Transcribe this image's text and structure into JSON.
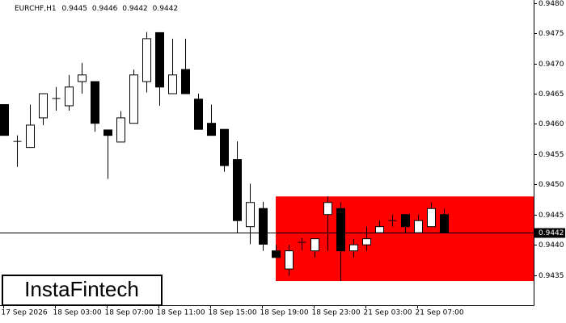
{
  "chart_data": {
    "type": "candlestick",
    "header": {
      "symbol": "EURCHF,H1",
      "open": 0.9445,
      "high": 0.9446,
      "low": 0.9442,
      "close": 0.9442
    },
    "logo": "InstaFintech",
    "categories": [
      "17 Sep 2026",
      null,
      null,
      null,
      "18 Sep 03:00",
      null,
      null,
      null,
      "18 Sep 07:00",
      null,
      null,
      null,
      "18 Sep 11:00",
      null,
      null,
      null,
      "18 Sep 15:00",
      null,
      null,
      null,
      "18 Sep 19:00",
      null,
      null,
      null,
      "18 Sep 23:00",
      null,
      null,
      null,
      "21 Sep 03:00",
      null,
      null,
      null,
      "21 Sep 07:00",
      null,
      null
    ],
    "open": [
      0.94632,
      0.94571,
      0.94561,
      0.9461,
      0.94642,
      0.9463,
      0.9467,
      0.9467,
      0.9459,
      0.9457,
      0.94601,
      0.9467,
      0.94751,
      0.9465,
      0.9469,
      0.94641,
      0.94601,
      0.94591,
      0.94541,
      0.9443,
      0.9446,
      0.9439,
      0.9436,
      0.94404,
      0.9439,
      0.9445,
      0.9446,
      0.9439,
      0.944,
      0.9442,
      0.9444,
      0.9445,
      0.9442,
      0.9443,
      0.9445
    ],
    "high": [
      0.94632,
      0.94581,
      0.94632,
      0.9465,
      0.94661,
      0.94681,
      0.94701,
      0.9467,
      0.9459,
      0.94621,
      0.9469,
      0.94752,
      0.94751,
      0.94741,
      0.94741,
      0.9465,
      0.94632,
      0.94591,
      0.94571,
      0.94501,
      0.94471,
      0.944,
      0.944,
      0.94411,
      0.9441,
      0.9448,
      0.9447,
      0.9441,
      0.9443,
      0.9444,
      0.9445,
      0.9445,
      0.9445,
      0.9447,
      0.9446
    ],
    "low": [
      0.94581,
      0.94529,
      0.94561,
      0.94598,
      0.94622,
      0.94622,
      0.9465,
      0.94587,
      0.94509,
      0.9457,
      0.94601,
      0.94652,
      0.9463,
      0.9465,
      0.9465,
      0.94591,
      0.94581,
      0.94521,
      0.9442,
      0.94401,
      0.9439,
      0.94379,
      0.94349,
      0.94391,
      0.94379,
      0.9439,
      0.9434,
      0.94379,
      0.9439,
      0.9442,
      0.9443,
      0.9442,
      0.9442,
      0.9443,
      0.9442
    ],
    "close": [
      0.94581,
      0.94571,
      0.94598,
      0.9465,
      0.94642,
      0.94661,
      0.94681,
      0.94601,
      0.94581,
      0.9461,
      0.94681,
      0.94741,
      0.94661,
      0.94681,
      0.9465,
      0.94591,
      0.94581,
      0.94531,
      0.9444,
      0.9447,
      0.94401,
      0.94379,
      0.9439,
      0.94404,
      0.9441,
      0.9447,
      0.9439,
      0.944,
      0.9441,
      0.9443,
      0.9444,
      0.9443,
      0.9444,
      0.9446,
      0.9442
    ],
    "zone": {
      "high": 0.9448,
      "low": 0.9434,
      "color": "#ff0000"
    },
    "last_price": {
      "value": 0.9442,
      "label": "0.9442"
    },
    "ylim": [
      0.943,
      0.94805
    ],
    "yticks": [
      {
        "value": 0.9435,
        "label": "0.9435"
      },
      {
        "value": 0.944,
        "label": "0.9440"
      },
      {
        "value": 0.9445,
        "label": "0.9445"
      },
      {
        "value": 0.945,
        "label": "0.9450"
      },
      {
        "value": 0.9455,
        "label": "0.9455"
      },
      {
        "value": 0.946,
        "label": "0.9460"
      },
      {
        "value": 0.9465,
        "label": "0.9465"
      },
      {
        "value": 0.947,
        "label": "0.9470"
      },
      {
        "value": 0.9475,
        "label": "0.9475"
      },
      {
        "value": 0.948,
        "label": "0.9480"
      }
    ]
  }
}
